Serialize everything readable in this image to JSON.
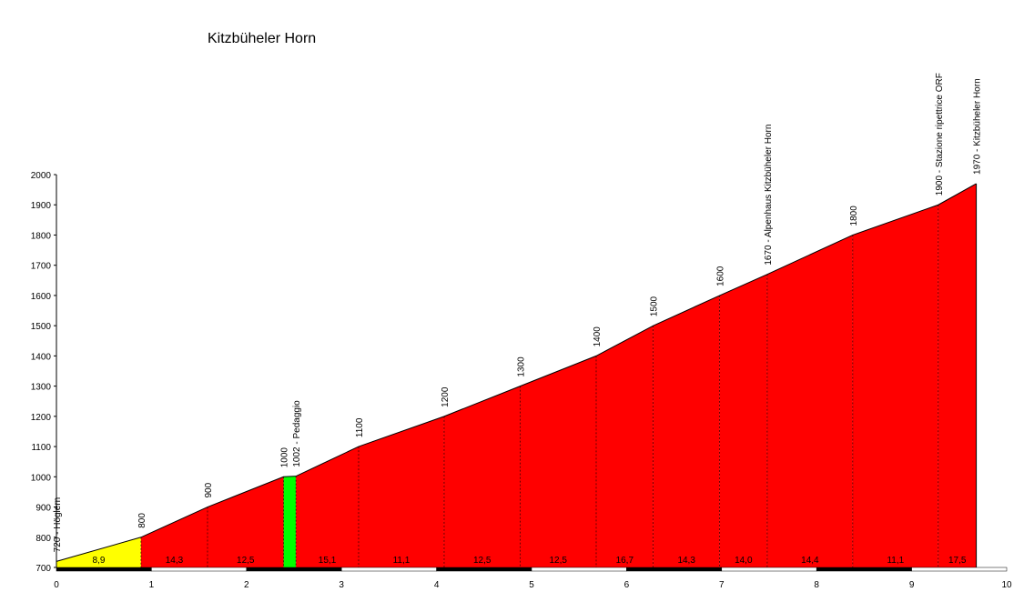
{
  "chart_data": {
    "type": "area",
    "title": "Kitzbüheler Horn",
    "xlabel": "",
    "ylabel": "",
    "xlim": [
      0,
      10
    ],
    "ylim": [
      700,
      2000
    ],
    "x_ticks": [
      0,
      1,
      2,
      3,
      4,
      5,
      6,
      7,
      8,
      9,
      10
    ],
    "y_ticks": [
      700,
      800,
      900,
      1000,
      1100,
      1200,
      1300,
      1400,
      1500,
      1600,
      1700,
      1800,
      1900,
      2000
    ],
    "profile": [
      {
        "x": 0.0,
        "y": 720
      },
      {
        "x": 0.89,
        "y": 800
      },
      {
        "x": 1.59,
        "y": 900
      },
      {
        "x": 2.39,
        "y": 1000
      },
      {
        "x": 2.52,
        "y": 1002
      },
      {
        "x": 3.18,
        "y": 1100
      },
      {
        "x": 4.08,
        "y": 1200
      },
      {
        "x": 4.88,
        "y": 1300
      },
      {
        "x": 5.68,
        "y": 1400
      },
      {
        "x": 6.28,
        "y": 1500
      },
      {
        "x": 6.98,
        "y": 1600
      },
      {
        "x": 7.48,
        "y": 1670
      },
      {
        "x": 8.38,
        "y": 1800
      },
      {
        "x": 9.28,
        "y": 1900
      },
      {
        "x": 9.68,
        "y": 1970
      }
    ],
    "segments": [
      {
        "from": 0.0,
        "to": 0.89,
        "gradient": "8,9",
        "color": "#ffff00"
      },
      {
        "from": 0.89,
        "to": 1.59,
        "gradient": "14,3",
        "color": "#ff0000"
      },
      {
        "from": 1.59,
        "to": 2.39,
        "gradient": "12,5",
        "color": "#ff0000"
      },
      {
        "from": 2.39,
        "to": 2.52,
        "gradient": "",
        "color": "#00ff00"
      },
      {
        "from": 2.52,
        "to": 3.18,
        "gradient": "15,1",
        "color": "#ff0000"
      },
      {
        "from": 3.18,
        "to": 4.08,
        "gradient": "11,1",
        "color": "#ff0000"
      },
      {
        "from": 4.08,
        "to": 4.88,
        "gradient": "12,5",
        "color": "#ff0000"
      },
      {
        "from": 4.88,
        "to": 5.68,
        "gradient": "12,5",
        "color": "#ff0000"
      },
      {
        "from": 5.68,
        "to": 6.28,
        "gradient": "16,7",
        "color": "#ff0000"
      },
      {
        "from": 6.28,
        "to": 6.98,
        "gradient": "14,3",
        "color": "#ff0000"
      },
      {
        "from": 6.98,
        "to": 7.48,
        "gradient": "14,0",
        "color": "#ff0000"
      },
      {
        "from": 7.48,
        "to": 8.38,
        "gradient": "14,4",
        "color": "#ff0000"
      },
      {
        "from": 8.38,
        "to": 9.28,
        "gradient": "11,1",
        "color": "#ff0000"
      },
      {
        "from": 9.28,
        "to": 9.68,
        "gradient": "17,5",
        "color": "#ff0000"
      }
    ],
    "annotations": [
      {
        "x": 0.0,
        "y": 720,
        "label": "720 - Höglern"
      },
      {
        "x": 0.89,
        "y": 800,
        "label": "800"
      },
      {
        "x": 1.59,
        "y": 900,
        "label": "900"
      },
      {
        "x": 2.39,
        "y": 1000,
        "label": "1000"
      },
      {
        "x": 2.52,
        "y": 1002,
        "label": "1002 - Pedaggio"
      },
      {
        "x": 3.18,
        "y": 1100,
        "label": "1100"
      },
      {
        "x": 4.08,
        "y": 1200,
        "label": "1200"
      },
      {
        "x": 4.88,
        "y": 1300,
        "label": "1300"
      },
      {
        "x": 5.68,
        "y": 1400,
        "label": "1400"
      },
      {
        "x": 6.28,
        "y": 1500,
        "label": "1500"
      },
      {
        "x": 6.98,
        "y": 1600,
        "label": "1600"
      },
      {
        "x": 7.48,
        "y": 1670,
        "label": "1670 - Alpenhaus Kitzbüheler Horn"
      },
      {
        "x": 8.38,
        "y": 1800,
        "label": "1800"
      },
      {
        "x": 9.28,
        "y": 1900,
        "label": "1900 - Stazione ripettrice ORF"
      },
      {
        "x": 9.68,
        "y": 1970,
        "label": "1970 - Kitzbüheler Horn"
      }
    ],
    "grid": false,
    "legend": "none"
  }
}
